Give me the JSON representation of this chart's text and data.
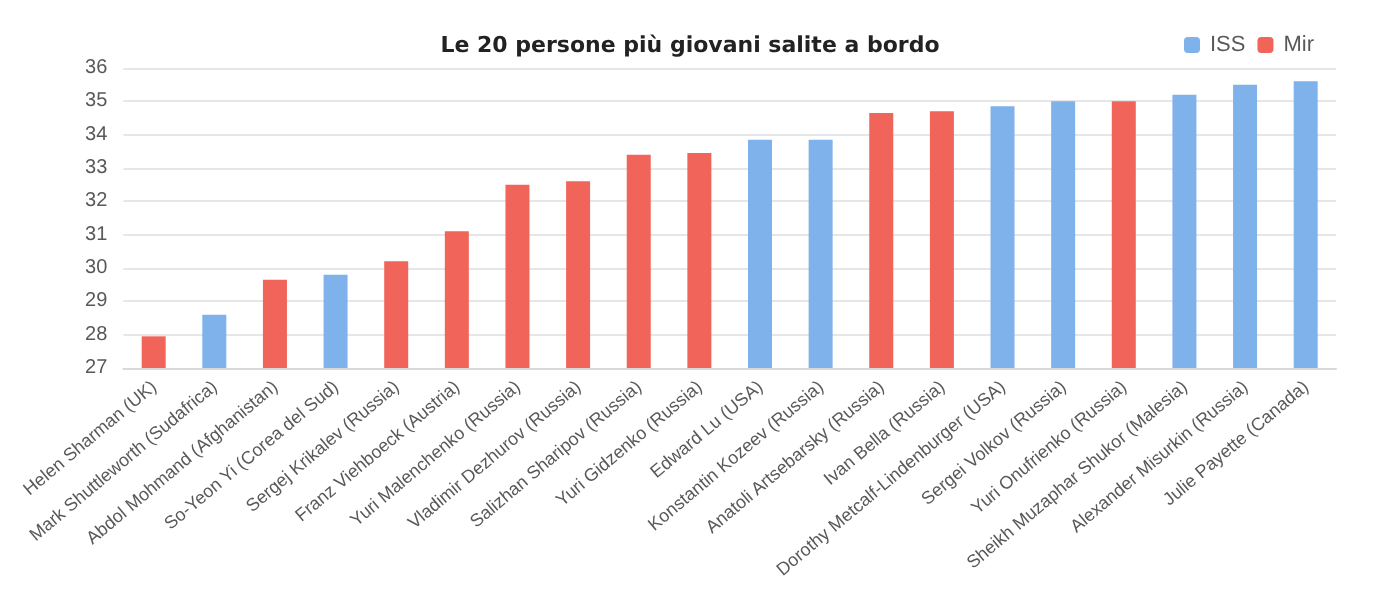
{
  "chart_data": {
    "type": "bar",
    "title": "Le 20 persone più giovani salite a bordo",
    "categories": [
      "Helen Sharman (UK)",
      "Mark Shuttleworth (Sudafrica)",
      "Abdol Mohmand (Afghanistan)",
      "So-Yeon Yi (Corea del Sud)",
      "Sergej Krikalev (Russia)",
      "Franz Viehboeck (Austria)",
      "Yuri Malenchenko (Russia)",
      "Vladimir Dezhurov (Russia)",
      "Salizhan Sharipov (Russia)",
      "Yuri Gidzenko (Russia)",
      "Edward Lu (USA)",
      "Konstantin Kozeev (Russia)",
      "Anatoli Artsebarsky (Russia)",
      "Ivan Bella (Russia)",
      "Dorothy Metcalf-Lindenburger (USA)",
      "Sergei Volkov (Russia)",
      "Yuri Onufrienko (Russia)",
      "Sheikh Muzaphar Shukor (Malesia)",
      "Alexander Misurkin (Russia)",
      "Julie Payette (Canada)"
    ],
    "series": [
      {
        "name": "ISS",
        "color": "#7fb2ea",
        "values": [
          null,
          28.6,
          null,
          29.8,
          null,
          null,
          null,
          null,
          null,
          null,
          33.85,
          33.85,
          null,
          null,
          34.85,
          35.0,
          null,
          35.2,
          35.5,
          35.6
        ]
      },
      {
        "name": "Mir",
        "color": "#f0645a",
        "values": [
          27.95,
          null,
          29.65,
          null,
          30.2,
          31.1,
          32.5,
          32.6,
          33.4,
          33.45,
          null,
          null,
          34.65,
          34.7,
          null,
          null,
          35.0,
          null,
          null,
          null
        ]
      }
    ],
    "ylim": [
      27,
      36
    ],
    "yticks": [
      27,
      28,
      29,
      30,
      31,
      32,
      33,
      34,
      35,
      36
    ],
    "grid": "y",
    "legend": "top right"
  }
}
